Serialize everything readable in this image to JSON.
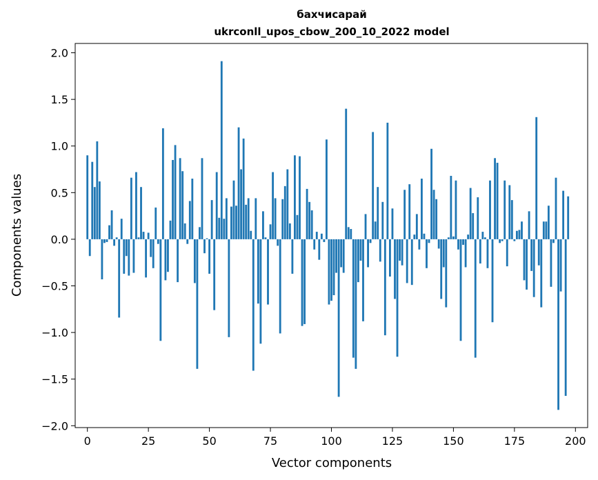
{
  "chart_data": {
    "type": "bar",
    "title": "бахчисарай",
    "subtitle": "ukrconll_upos_cbow_200_10_2022 model",
    "xlabel": "Vector components",
    "ylabel": "Components values",
    "xlim": [
      -5,
      205
    ],
    "ylim": [
      -2.02,
      2.1
    ],
    "xticks": [
      0,
      25,
      50,
      75,
      100,
      125,
      150,
      175,
      200
    ],
    "yticks": [
      -2.0,
      -1.5,
      -1.0,
      -0.5,
      0.0,
      0.5,
      1.0,
      1.5,
      2.0
    ],
    "xtick_labels": [
      "0",
      "25",
      "50",
      "75",
      "100",
      "125",
      "150",
      "175",
      "200"
    ],
    "ytick_labels": [
      "−2.0",
      "−1.5",
      "−1.0",
      "−0.5",
      "0.0",
      "0.5",
      "1.0",
      "1.5",
      "2.0"
    ],
    "bar_color": "#1f77b4",
    "values": [
      0.9,
      -0.18,
      0.83,
      0.56,
      1.05,
      0.62,
      -0.43,
      -0.04,
      -0.03,
      0.15,
      0.31,
      -0.07,
      0.02,
      -0.84,
      0.22,
      -0.37,
      -0.18,
      -0.39,
      0.66,
      -0.36,
      0.72,
      0.02,
      0.56,
      0.08,
      -0.41,
      0.07,
      -0.19,
      -0.31,
      0.34,
      -0.05,
      -1.09,
      1.19,
      -0.44,
      -0.35,
      0.2,
      0.85,
      1.01,
      -0.46,
      0.87,
      0.73,
      0.17,
      -0.05,
      0.41,
      0.65,
      -0.47,
      -1.39,
      0.13,
      0.87,
      -0.15,
      0.01,
      -0.37,
      0.42,
      -0.76,
      0.72,
      0.23,
      1.91,
      0.22,
      0.44,
      -1.05,
      0.35,
      0.63,
      0.36,
      1.2,
      0.75,
      1.08,
      0.37,
      0.44,
      0.09,
      -1.41,
      0.44,
      -0.69,
      -1.12,
      0.3,
      0.02,
      -0.7,
      0.16,
      0.72,
      0.44,
      -0.07,
      -1.01,
      0.43,
      0.57,
      0.75,
      0.17,
      -0.37,
      0.9,
      0.26,
      0.89,
      -0.93,
      -0.91,
      0.54,
      0.4,
      0.31,
      -0.11,
      0.08,
      -0.22,
      0.06,
      -0.03,
      1.07,
      -0.7,
      -0.66,
      -0.6,
      -0.36,
      -1.69,
      -0.3,
      -0.36,
      1.4,
      0.13,
      0.11,
      -1.27,
      -1.39,
      -0.46,
      -0.23,
      -0.88,
      0.27,
      -0.3,
      -0.04,
      1.15,
      0.19,
      0.56,
      -0.24,
      0.4,
      -1.03,
      1.25,
      -0.4,
      0.33,
      -0.64,
      -1.26,
      -0.23,
      -0.28,
      0.53,
      -0.47,
      0.59,
      -0.49,
      0.05,
      0.27,
      -0.11,
      0.65,
      0.06,
      -0.31,
      -0.04,
      0.97,
      0.53,
      0.43,
      -0.1,
      -0.64,
      -0.3,
      -0.73,
      0.02,
      0.68,
      0.03,
      0.63,
      -0.11,
      -1.09,
      -0.06,
      -0.3,
      0.05,
      0.55,
      0.28,
      -1.27,
      0.45,
      -0.26,
      0.08,
      0.02,
      -0.31,
      0.63,
      -0.89,
      0.87,
      0.82,
      -0.04,
      -0.02,
      0.63,
      -0.29,
      0.58,
      0.42,
      -0.02,
      0.09,
      0.1,
      0.19,
      -0.44,
      -0.54,
      0.3,
      -0.34,
      -0.62,
      1.31,
      -0.28,
      -0.73,
      0.19,
      0.19,
      0.36,
      -0.51,
      -0.04,
      0.66,
      -1.83,
      -0.56,
      0.52,
      -1.68,
      0.46
    ]
  }
}
